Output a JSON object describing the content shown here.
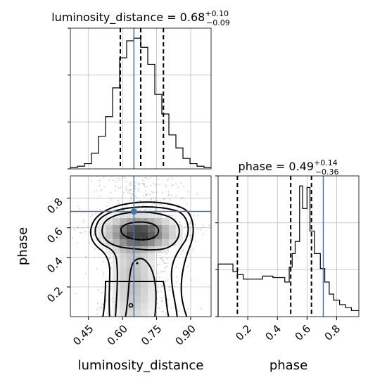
{
  "chart_data": {
    "type": "corner",
    "truth_color": "#4477aa",
    "hist_color": "#000000",
    "grid": true,
    "panels": [
      {
        "name": "luminosity_distance-marginal",
        "type": "histogram",
        "title": {
          "prefix": "luminosity_distance = 0.68",
          "sup": "+0.10",
          "sub": "−0.09"
        },
        "xlim": [
          0.37,
          0.99
        ],
        "bin_edges": [
          0.37,
          0.401,
          0.432,
          0.463,
          0.494,
          0.525,
          0.556,
          0.587,
          0.618,
          0.649,
          0.68,
          0.711,
          0.742,
          0.773,
          0.804,
          0.835,
          0.866,
          0.897,
          0.928,
          0.959,
          0.99
        ],
        "density": [
          0.01,
          0.02,
          0.04,
          0.12,
          0.25,
          0.4,
          0.62,
          0.85,
          0.98,
          1.0,
          0.93,
          0.8,
          0.57,
          0.42,
          0.26,
          0.16,
          0.08,
          0.04,
          0.02,
          0.01
        ],
        "quantiles": [
          0.59,
          0.68,
          0.78
        ],
        "truth": 0.65
      },
      {
        "name": "phase-marginal",
        "type": "histogram",
        "title": {
          "prefix": "phase = 0.49",
          "sup": "+0.14",
          "sub": "−0.36"
        },
        "xlim": [
          0.0,
          0.95
        ],
        "xticks": [
          0.2,
          0.4,
          0.6,
          0.8
        ],
        "xtick_labels": [
          "0.2",
          "0.4",
          "0.6",
          "0.8"
        ],
        "xlabel": "phase",
        "bin_edges": [
          0.0,
          0.1,
          0.13,
          0.17,
          0.3,
          0.37,
          0.45,
          0.48,
          0.5,
          0.52,
          0.55,
          0.57,
          0.6,
          0.62,
          0.65,
          0.69,
          0.72,
          0.75,
          0.78,
          0.82,
          0.86,
          0.9,
          0.95
        ],
        "density": [
          0.35,
          0.3,
          0.28,
          0.25,
          0.27,
          0.26,
          0.23,
          0.33,
          0.42,
          0.5,
          0.87,
          0.72,
          0.86,
          0.57,
          0.42,
          0.32,
          0.23,
          0.15,
          0.11,
          0.08,
          0.06,
          0.04
        ],
        "quantiles": [
          0.13,
          0.49,
          0.63
        ],
        "truth": 0.71
      },
      {
        "name": "joint-luminosity_distance-phase",
        "type": "contour-scatter",
        "xlim": [
          0.37,
          0.99
        ],
        "ylim": [
          0.0,
          0.95
        ],
        "xticks": [
          0.45,
          0.6,
          0.75,
          0.9
        ],
        "xtick_labels": [
          "0.45",
          "0.60",
          "0.75",
          "0.90"
        ],
        "yticks": [
          0.2,
          0.4,
          0.6,
          0.8
        ],
        "ytick_labels": [
          "0.2",
          "0.4",
          "0.6",
          "0.8"
        ],
        "xlabel": "luminosity_distance",
        "ylabel": "phase",
        "truth": [
          0.65,
          0.71
        ],
        "contour_levels": [
          "0.5-sigma",
          "1-sigma",
          "1.5-sigma",
          "2-sigma"
        ],
        "peak_region": {
          "x": [
            0.6,
            0.73
          ],
          "y": [
            0.52,
            0.63
          ]
        }
      }
    ]
  }
}
